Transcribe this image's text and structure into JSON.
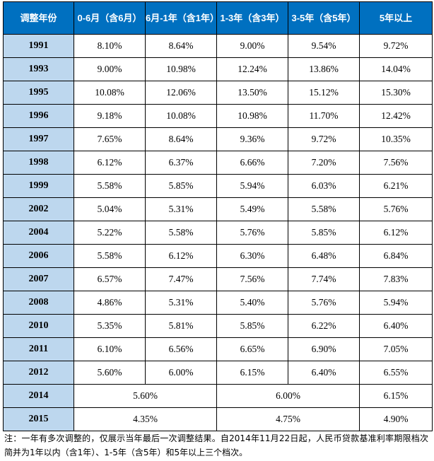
{
  "table": {
    "headers": [
      "调整年份",
      "0-6月（含6月）",
      "6月-1年（含1年）",
      "1-3年（含3年）",
      "3-5年（含5年）",
      "5年以上"
    ],
    "rows": [
      {
        "year": "1991",
        "values": [
          "8.10%",
          "8.64%",
          "9.00%",
          "9.54%",
          "9.72%"
        ]
      },
      {
        "year": "1993",
        "values": [
          "9.00%",
          "10.98%",
          "12.24%",
          "13.86%",
          "14.04%"
        ]
      },
      {
        "year": "1995",
        "values": [
          "10.08%",
          "12.06%",
          "13.50%",
          "15.12%",
          "15.30%"
        ]
      },
      {
        "year": "1996",
        "values": [
          "9.18%",
          "10.08%",
          "10.98%",
          "11.70%",
          "12.42%"
        ]
      },
      {
        "year": "1997",
        "values": [
          "7.65%",
          "8.64%",
          "9.36%",
          "9.72%",
          "10.35%"
        ]
      },
      {
        "year": "1998",
        "values": [
          "6.12%",
          "6.37%",
          "6.66%",
          "7.20%",
          "7.56%"
        ]
      },
      {
        "year": "1999",
        "values": [
          "5.58%",
          "5.85%",
          "5.94%",
          "6.03%",
          "6.21%"
        ]
      },
      {
        "year": "2002",
        "values": [
          "5.04%",
          "5.31%",
          "5.49%",
          "5.58%",
          "5.76%"
        ]
      },
      {
        "year": "2004",
        "values": [
          "5.22%",
          "5.58%",
          "5.76%",
          "5.85%",
          "6.12%"
        ]
      },
      {
        "year": "2006",
        "values": [
          "5.58%",
          "6.12%",
          "6.30%",
          "6.48%",
          "6.84%"
        ]
      },
      {
        "year": "2007",
        "values": [
          "6.57%",
          "7.47%",
          "7.56%",
          "7.74%",
          "7.83%"
        ]
      },
      {
        "year": "2008",
        "values": [
          "4.86%",
          "5.31%",
          "5.40%",
          "5.76%",
          "5.94%"
        ]
      },
      {
        "year": "2010",
        "values": [
          "5.35%",
          "5.81%",
          "5.85%",
          "6.22%",
          "6.40%"
        ]
      },
      {
        "year": "2011",
        "values": [
          "6.10%",
          "6.56%",
          "6.65%",
          "6.90%",
          "7.05%"
        ]
      },
      {
        "year": "2012",
        "values": [
          "5.60%",
          "6.00%",
          "6.15%",
          "6.40%",
          "6.55%"
        ]
      }
    ],
    "merged_rows": [
      {
        "year": "2014",
        "within_1y": "5.60%",
        "y1_to_5": "6.00%",
        "over_5y": "6.15%"
      },
      {
        "year": "2015",
        "within_1y": "4.35%",
        "y1_to_5": "4.75%",
        "over_5y": "4.90%"
      }
    ]
  },
  "note": "注：一年有多次调整的，仅展示当年最后一次调整结果。自2014年11月22日起，人民币贷款基准利率期限档次简并为1年以内（含1年）、1-5年（含5年）和5年以上三个档次。",
  "colors": {
    "header_bg": "#0070c0",
    "year_bg": "#bdd7ee"
  }
}
